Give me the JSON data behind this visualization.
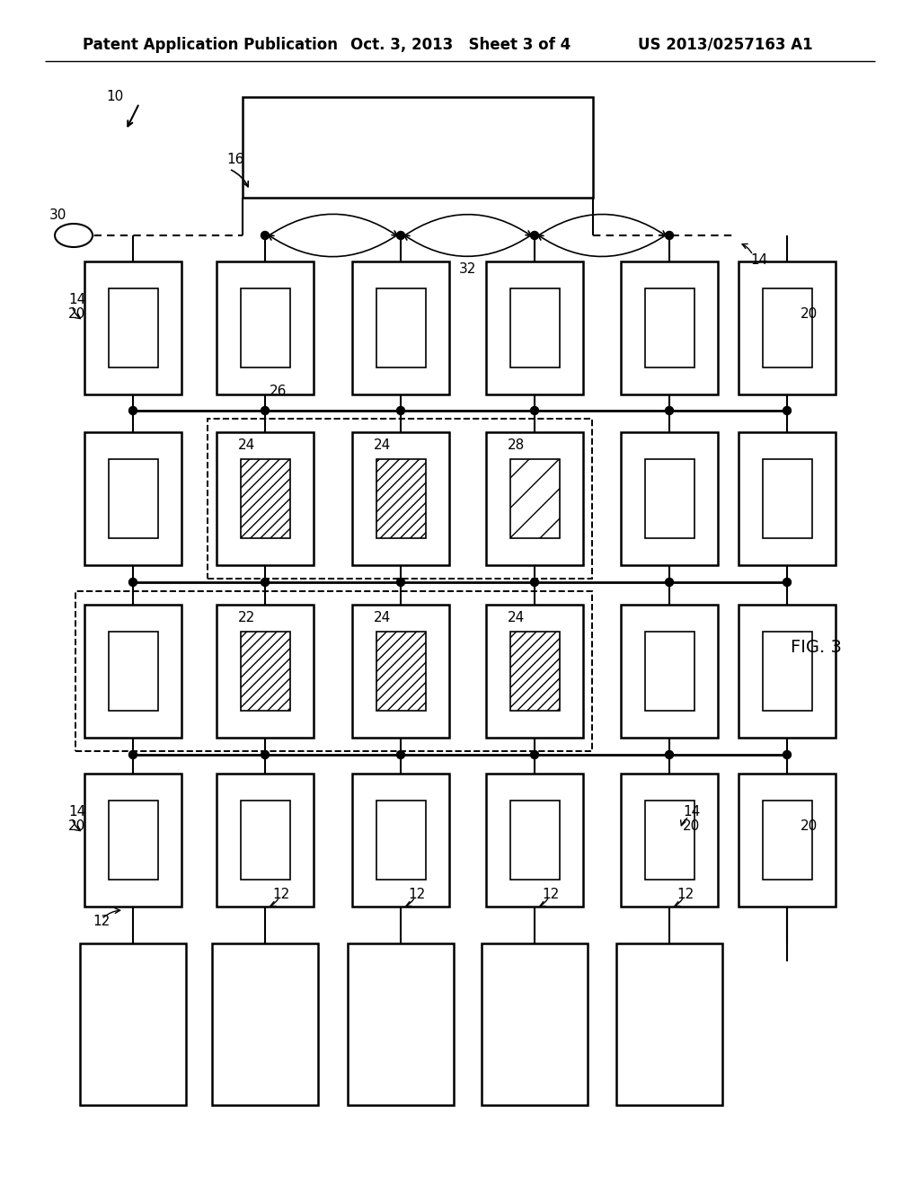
{
  "bg_color": "#ffffff",
  "header_left": "Patent Application Publication",
  "header_mid": "Oct. 3, 2013   Sheet 3 of 4",
  "header_right": "US 2013/0257163 A1",
  "fig_label": "FIG. 3",
  "label_10": "10",
  "label_16": "16",
  "label_30": "30",
  "label_32": "32",
  "label_14": "14",
  "label_20": "20",
  "label_26": "26",
  "label_22": "22",
  "label_24": "24",
  "label_28": "28",
  "label_12": "12"
}
